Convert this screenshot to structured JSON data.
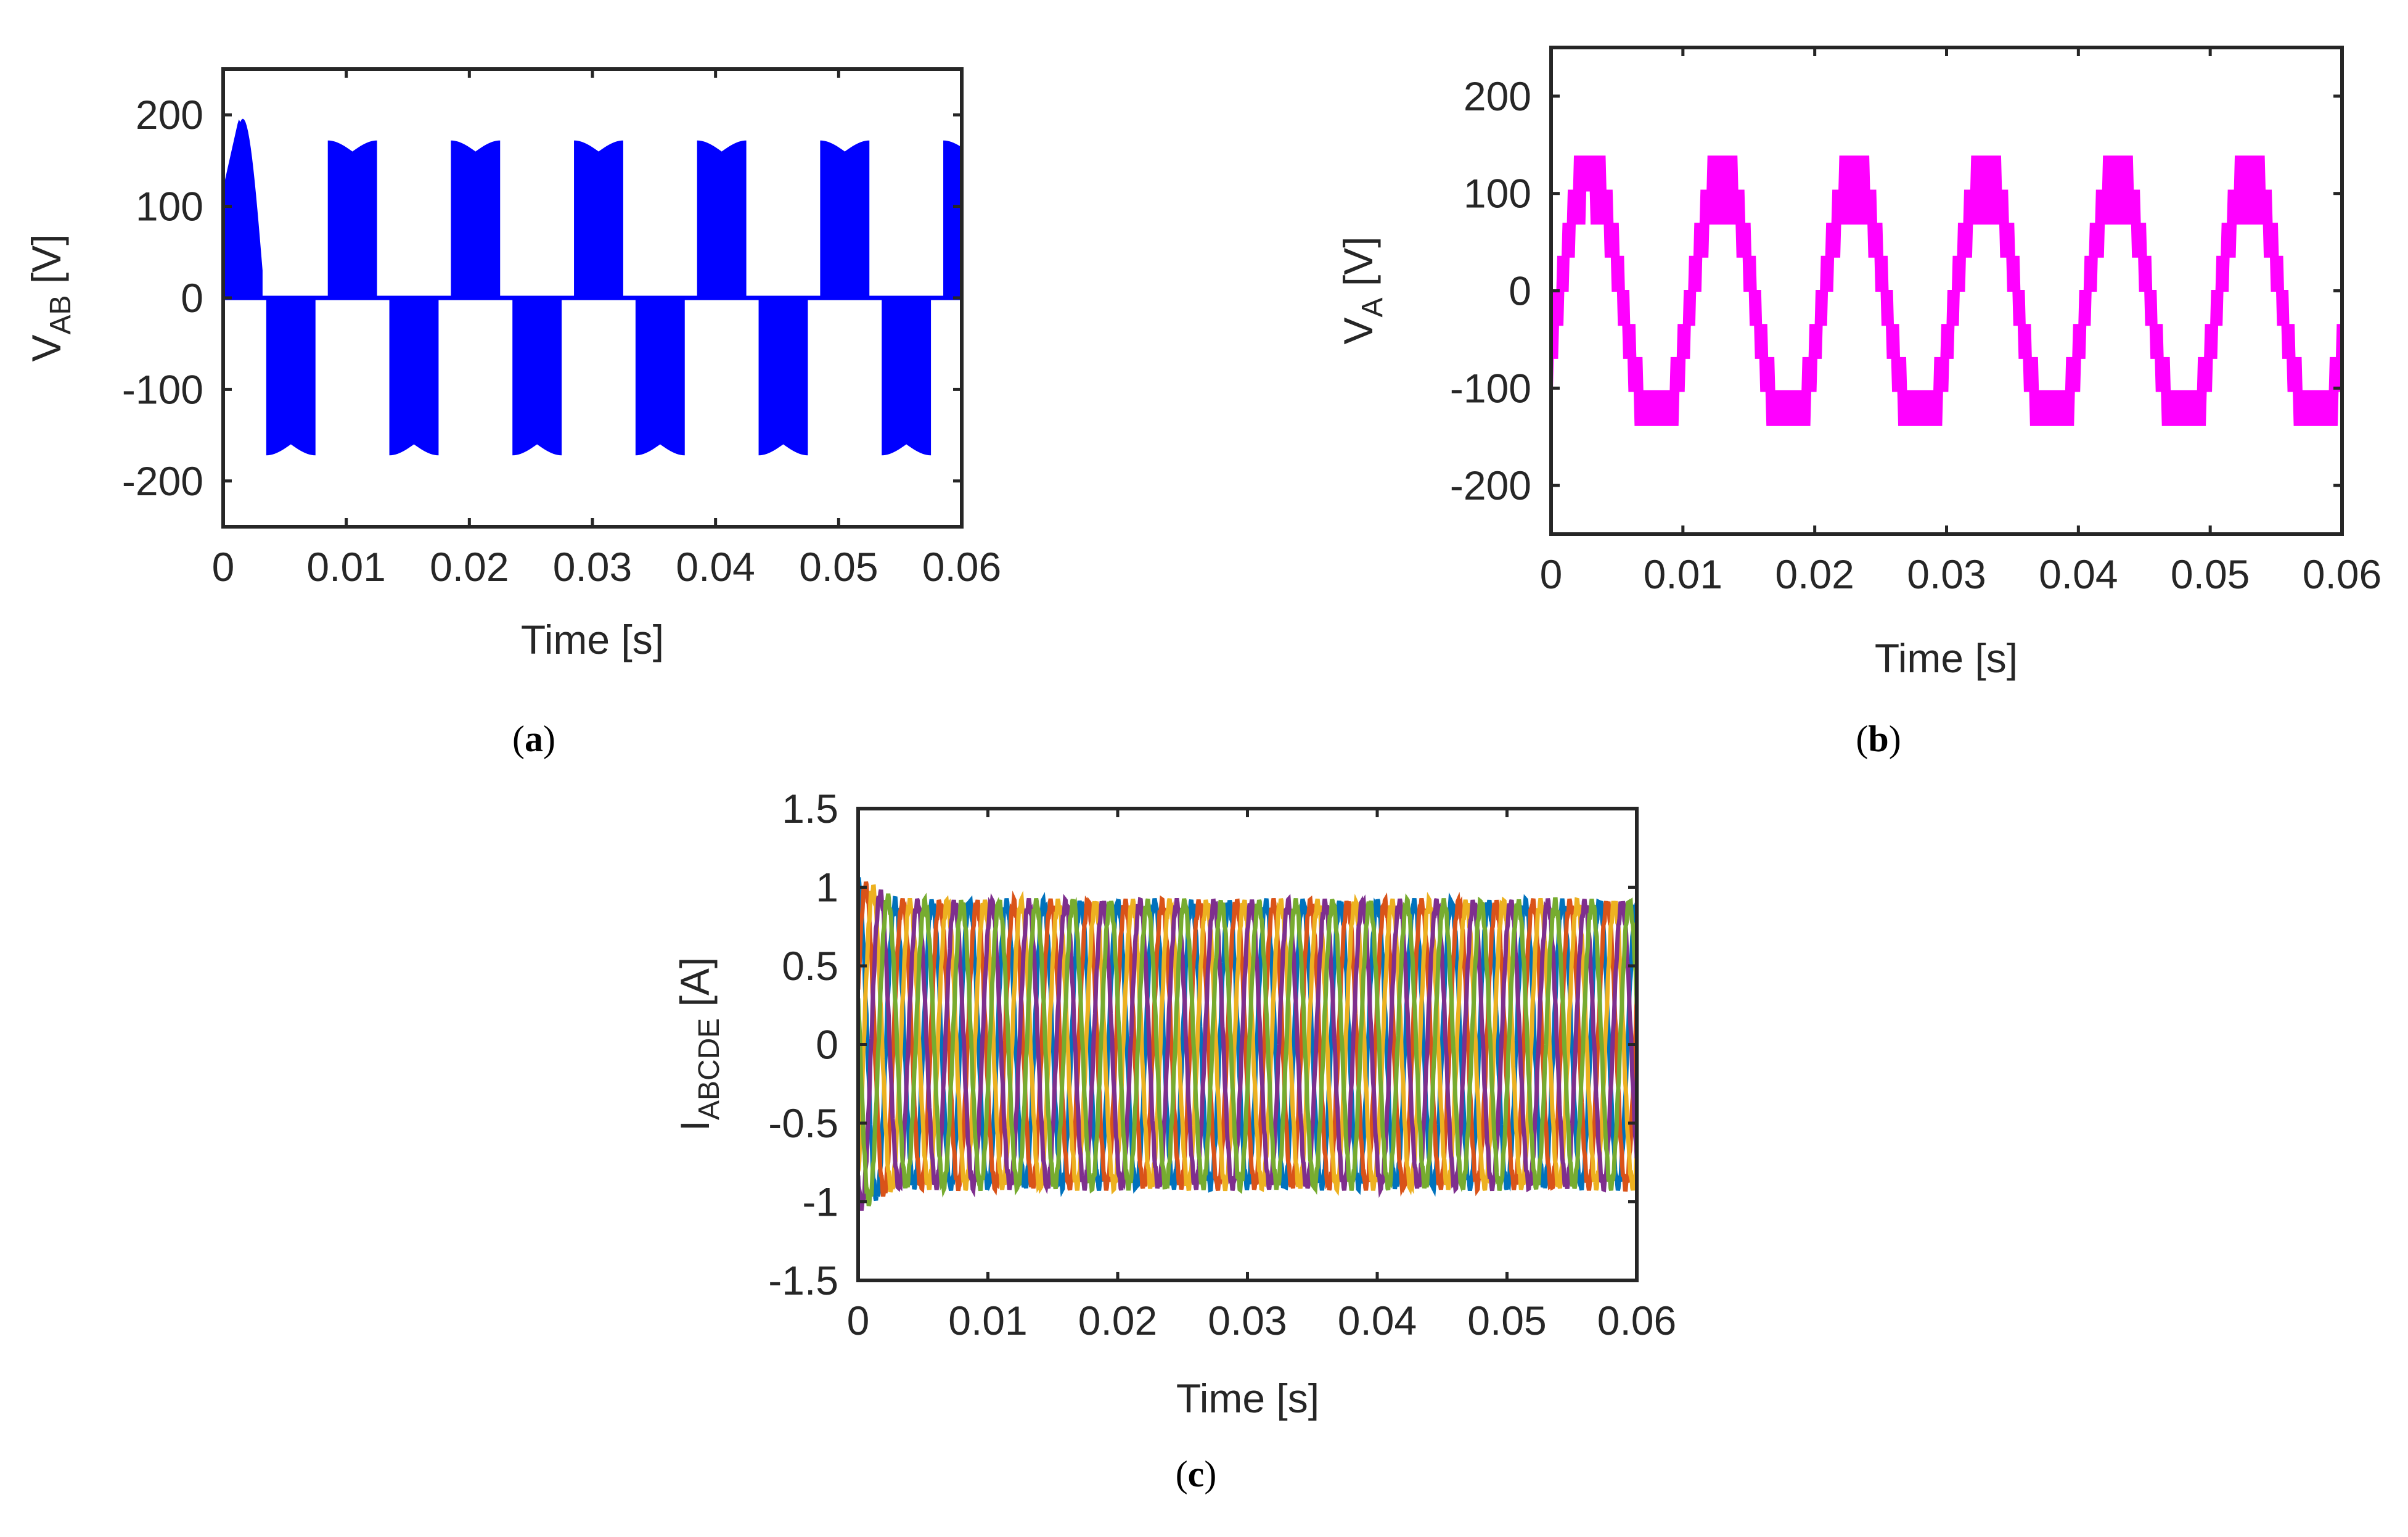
{
  "chart_data": [
    {
      "panel_label": {
        "open": "(",
        "letter": "a",
        "close": ")"
      },
      "type": "line",
      "xlabel": "Time [s]",
      "ylabel": {
        "main": "V",
        "sub": "AB",
        "unit": " [V]"
      },
      "xlim": [
        0,
        0.06
      ],
      "ylim": [
        -250,
        250
      ],
      "xticks": [
        0,
        0.01,
        0.02,
        0.03,
        0.04,
        0.05,
        0.06
      ],
      "xtick_labels": [
        "0",
        "0.01",
        "0.02",
        "0.03",
        "0.04",
        "0.05",
        "0.06"
      ],
      "yticks": [
        200,
        100,
        0,
        -100,
        -200
      ],
      "ytick_labels": [
        "200",
        "100",
        "0",
        "-100",
        "-200"
      ],
      "grid": false,
      "series": [
        {
          "color": "#0000ff",
          "waveform": "pwm-quasi-square",
          "frequency_hz": 100,
          "peak": 172,
          "initial_peak": 195,
          "conduction_fraction_per_half_cycle": 0.4
        }
      ]
    },
    {
      "panel_label": {
        "open": "(",
        "letter": "b",
        "close": ")"
      },
      "type": "line",
      "xlabel": "Time [s]",
      "ylabel": {
        "main": "V",
        "sub": "A",
        "unit": " [V]"
      },
      "xlim": [
        0,
        0.06
      ],
      "ylim": [
        -250,
        250
      ],
      "xticks": [
        0,
        0.01,
        0.02,
        0.03,
        0.04,
        0.05,
        0.06
      ],
      "xtick_labels": [
        "0",
        "0.01",
        "0.02",
        "0.03",
        "0.04",
        "0.05",
        "0.06"
      ],
      "yticks": [
        200,
        100,
        0,
        -100,
        -200
      ],
      "ytick_labels": [
        "200",
        "100",
        "0",
        "-100",
        "-200"
      ],
      "grid": false,
      "series": [
        {
          "color": "#ff00ff",
          "waveform": "pwm-multilevel-phase-voltage",
          "frequency_hz": 100,
          "peak": 138,
          "initial_peak": 145,
          "levels": [
            -138,
            -103,
            -69,
            -35,
            0,
            35,
            69,
            103,
            138
          ]
        }
      ]
    },
    {
      "panel_label": {
        "open": "(",
        "letter": "c",
        "close": ")"
      },
      "type": "line",
      "xlabel": "Time [s]",
      "ylabel": {
        "main": "I",
        "sub": "ABCDE",
        "unit": " [A]"
      },
      "xlim": [
        0,
        0.06
      ],
      "ylim": [
        -1.5,
        1.5
      ],
      "xticks": [
        0,
        0.01,
        0.02,
        0.03,
        0.04,
        0.05,
        0.06
      ],
      "xtick_labels": [
        "0",
        "0.01",
        "0.02",
        "0.03",
        "0.04",
        "0.05",
        "0.06"
      ],
      "yticks": [
        1.5,
        1,
        0.5,
        0,
        -0.5,
        -1,
        -1.5
      ],
      "ytick_labels": [
        "1.5",
        "1",
        "0.5",
        "0",
        "-0.5",
        "-1",
        "-1.5"
      ],
      "grid": false,
      "series": [
        {
          "color": "#0072bd",
          "waveform": "sine",
          "frequency_hz": 350,
          "amplitude": 0.9,
          "phase_deg": 0
        },
        {
          "color": "#d95319",
          "waveform": "sine",
          "frequency_hz": 350,
          "amplitude": 0.9,
          "phase_deg": -72
        },
        {
          "color": "#edb120",
          "waveform": "sine",
          "frequency_hz": 350,
          "amplitude": 0.9,
          "phase_deg": -144
        },
        {
          "color": "#7e2f8e",
          "waveform": "sine",
          "frequency_hz": 350,
          "amplitude": 0.9,
          "phase_deg": -216
        },
        {
          "color": "#77ac30",
          "waveform": "sine",
          "frequency_hz": 350,
          "amplitude": 0.9,
          "phase_deg": -288
        }
      ]
    }
  ]
}
